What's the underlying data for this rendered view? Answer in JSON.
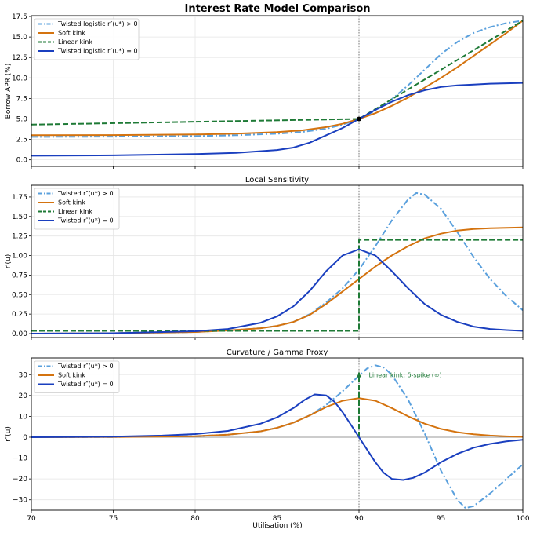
{
  "figure_title": "Interest Rate Model Comparison",
  "colors": {
    "light_blue": "#5aa0dd",
    "orange": "#d4730f",
    "green": "#1e7a36",
    "dark_blue": "#1a3fbf",
    "grid": "#e6e6e6",
    "vline": "#7a7a7a",
    "zero": "#9a9a9a"
  },
  "xlabel": "Utilisation (%)",
  "xticks": [
    70,
    75,
    80,
    85,
    90,
    95,
    100
  ],
  "chart_data": [
    {
      "type": "line",
      "title": "Interest Rate Model Comparison",
      "ylabel": "Borrow APR (%)",
      "xlim": [
        70,
        100
      ],
      "ylim": [
        -0.8,
        17.6
      ],
      "yticks": [
        0.0,
        2.5,
        5.0,
        7.5,
        10.0,
        12.5,
        15.0,
        17.5
      ],
      "ytick_labels": [
        "0.0",
        "2.5",
        "5.0",
        "7.5",
        "10.0",
        "12.5",
        "15.0",
        "17.5"
      ],
      "kink_x": 90,
      "marker": {
        "x": 90,
        "y": 5.0
      },
      "series": [
        {
          "name": "Twisted logistic  r''(u*) > 0",
          "style": "dashdot",
          "color": "light_blue",
          "x": [
            70,
            75,
            80,
            82.5,
            85,
            86.5,
            88,
            89,
            90,
            91,
            92,
            93,
            94,
            95,
            96,
            97,
            98,
            99,
            100
          ],
          "y": [
            2.8,
            2.83,
            2.9,
            3.0,
            3.2,
            3.4,
            3.8,
            4.3,
            5.0,
            6.0,
            7.4,
            9.1,
            11.0,
            12.9,
            14.4,
            15.5,
            16.2,
            16.7,
            17.0
          ]
        },
        {
          "name": "Soft kink",
          "style": "solid",
          "color": "orange",
          "x": [
            70,
            75,
            80,
            82.5,
            85,
            86.5,
            88,
            89,
            90,
            91,
            92,
            93,
            94,
            95,
            96,
            97,
            98,
            99,
            100
          ],
          "y": [
            3.0,
            3.02,
            3.1,
            3.2,
            3.4,
            3.6,
            4.0,
            4.4,
            5.0,
            5.7,
            6.6,
            7.6,
            8.8,
            10.0,
            11.3,
            12.7,
            14.1,
            15.5,
            17.0
          ]
        },
        {
          "name": "Linear kink",
          "style": "dashed",
          "color": "green",
          "x": [
            70,
            90,
            100
          ],
          "y": [
            4.3,
            5.0,
            17.0
          ]
        },
        {
          "name": "Twisted logistic  r''(u*) = 0",
          "style": "solid",
          "color": "dark_blue",
          "x": [
            70,
            75,
            80,
            82.5,
            85,
            86,
            87,
            88,
            89,
            90,
            91,
            92,
            93,
            94,
            95,
            96,
            97,
            98,
            99,
            100
          ],
          "y": [
            0.5,
            0.55,
            0.7,
            0.85,
            1.2,
            1.5,
            2.1,
            3.0,
            3.9,
            5.0,
            6.1,
            7.1,
            7.9,
            8.5,
            8.9,
            9.1,
            9.2,
            9.3,
            9.35,
            9.4
          ]
        }
      ],
      "legend": [
        {
          "label": "Twisted logistic  r″(u*) > 0",
          "series": 0
        },
        {
          "label": "Soft kink",
          "series": 1
        },
        {
          "label": "Linear kink",
          "series": 2
        },
        {
          "label": "Twisted logistic  r″(u*) = 0",
          "series": 3
        }
      ],
      "legend_position": "top-left"
    },
    {
      "type": "line",
      "title": "Local Sensitivity",
      "ylabel": "r′(u)",
      "xlim": [
        70,
        100
      ],
      "ylim": [
        -0.05,
        1.9
      ],
      "yticks": [
        0.0,
        0.25,
        0.5,
        0.75,
        1.0,
        1.25,
        1.5,
        1.75
      ],
      "ytick_labels": [
        "0.00",
        "0.25",
        "0.50",
        "0.75",
        "1.00",
        "1.25",
        "1.50",
        "1.75"
      ],
      "kink_x": 90,
      "series": [
        {
          "name": "Twisted  r''(u*) > 0",
          "style": "dashdot",
          "color": "light_blue",
          "x": [
            70,
            75,
            80,
            82,
            84,
            85,
            86,
            87,
            88,
            89,
            90,
            91,
            92,
            93,
            93.5,
            94,
            95,
            96,
            97,
            98,
            99,
            100
          ],
          "y": [
            0.0,
            0.005,
            0.02,
            0.04,
            0.07,
            0.1,
            0.15,
            0.25,
            0.4,
            0.58,
            0.82,
            1.12,
            1.45,
            1.72,
            1.8,
            1.78,
            1.6,
            1.3,
            0.98,
            0.7,
            0.48,
            0.3
          ]
        },
        {
          "name": "Soft kink",
          "style": "solid",
          "color": "orange",
          "x": [
            70,
            75,
            80,
            82,
            84,
            85,
            86,
            87,
            88,
            89,
            90,
            91,
            92,
            93,
            94,
            95,
            96,
            97,
            98,
            99,
            100
          ],
          "y": [
            0.0,
            0.005,
            0.02,
            0.04,
            0.07,
            0.1,
            0.15,
            0.24,
            0.38,
            0.54,
            0.7,
            0.86,
            1.0,
            1.12,
            1.22,
            1.28,
            1.32,
            1.34,
            1.35,
            1.355,
            1.36
          ]
        },
        {
          "name": "Linear kink",
          "style": "dashed",
          "color": "green",
          "x": [
            70,
            90,
            90,
            100
          ],
          "y": [
            0.035,
            0.035,
            1.2,
            1.2
          ]
        },
        {
          "name": "Twisted  r''(u*) = 0",
          "style": "solid",
          "color": "dark_blue",
          "x": [
            70,
            75,
            80,
            82,
            84,
            85,
            86,
            87,
            88,
            89,
            90,
            91,
            92,
            93,
            94,
            95,
            96,
            97,
            98,
            99,
            100
          ],
          "y": [
            0.0,
            0.005,
            0.03,
            0.06,
            0.14,
            0.22,
            0.35,
            0.55,
            0.8,
            1.0,
            1.08,
            1.0,
            0.8,
            0.58,
            0.38,
            0.24,
            0.15,
            0.09,
            0.06,
            0.045,
            0.035
          ]
        }
      ],
      "legend": [
        {
          "label": "Twisted  r″(u*) > 0",
          "series": 0
        },
        {
          "label": "Soft kink",
          "series": 1
        },
        {
          "label": "Linear kink",
          "series": 2
        },
        {
          "label": "Twisted  r″(u*) = 0",
          "series": 3
        }
      ],
      "legend_position": "top-left"
    },
    {
      "type": "line",
      "title": "Curvature / Gamma Proxy",
      "ylabel": "r″(u)",
      "xlim": [
        70,
        100
      ],
      "ylim": [
        -35,
        38
      ],
      "yticks": [
        -30,
        -20,
        -10,
        0,
        10,
        20,
        30
      ],
      "ytick_labels": [
        "−30",
        "−20",
        "−10",
        "0",
        "10",
        "20",
        "30"
      ],
      "kink_x": 90,
      "zero_line": true,
      "annotation": {
        "text": "Linear kink: δ-spike (∞)",
        "x": 90.5,
        "y": 30,
        "arrow_from": [
          90,
          0
        ],
        "arrow_to": [
          90,
          31
        ]
      },
      "series": [
        {
          "name": "Twisted  r''(u*) > 0",
          "style": "dashdot",
          "color": "light_blue",
          "x": [
            70,
            75,
            80,
            82,
            84,
            85,
            86,
            87,
            88,
            89,
            90,
            90.5,
            91,
            91.5,
            92,
            93,
            94,
            95,
            96,
            96.5,
            97,
            98,
            99,
            100
          ],
          "y": [
            0.0,
            0.1,
            0.5,
            1.2,
            2.8,
            4.5,
            7.0,
            10.5,
            15.5,
            22.0,
            29.5,
            33.0,
            34.5,
            33.5,
            30.0,
            18.0,
            2.0,
            -16.0,
            -30.0,
            -34.0,
            -33.0,
            -27.0,
            -20.0,
            -13.0
          ]
        },
        {
          "name": "Soft kink",
          "style": "solid",
          "color": "orange",
          "x": [
            70,
            75,
            80,
            82,
            84,
            85,
            86,
            87,
            88,
            89,
            90,
            91,
            92,
            93,
            94,
            95,
            96,
            97,
            98,
            99,
            100
          ],
          "y": [
            0.0,
            0.1,
            0.5,
            1.2,
            2.8,
            4.5,
            7.0,
            10.5,
            14.5,
            17.5,
            18.7,
            17.5,
            14.0,
            10.0,
            6.5,
            4.0,
            2.4,
            1.4,
            0.8,
            0.4,
            0.2
          ]
        },
        {
          "name": "Linear kink",
          "style": "dashed",
          "color": "green",
          "x": [
            90,
            90
          ],
          "y": [
            0,
            31
          ]
        },
        {
          "name": "Twisted  r''(u*) = 0",
          "style": "solid",
          "color": "dark_blue",
          "x": [
            70,
            75,
            78,
            80,
            82,
            84,
            85,
            86,
            86.7,
            87.3,
            88,
            88.5,
            89,
            89.5,
            90,
            90.5,
            91,
            91.5,
            92,
            92.7,
            93.3,
            94,
            95,
            96,
            97,
            98,
            99,
            100
          ],
          "y": [
            0.0,
            0.3,
            0.8,
            1.5,
            3.0,
            6.5,
            9.5,
            14.0,
            18.0,
            20.5,
            20.0,
            17.0,
            12.0,
            6.0,
            0.0,
            -6.0,
            -12.0,
            -17.0,
            -20.0,
            -20.5,
            -19.5,
            -17.0,
            -12.0,
            -8.0,
            -5.0,
            -3.2,
            -2.0,
            -1.2
          ]
        }
      ],
      "legend": [
        {
          "label": "Twisted  r″(u*) > 0",
          "series": 0
        },
        {
          "label": "Soft kink",
          "series": 1
        },
        {
          "label": "Twisted  r″(u*) = 0",
          "series": 3
        }
      ],
      "legend_position": "top-left"
    }
  ]
}
